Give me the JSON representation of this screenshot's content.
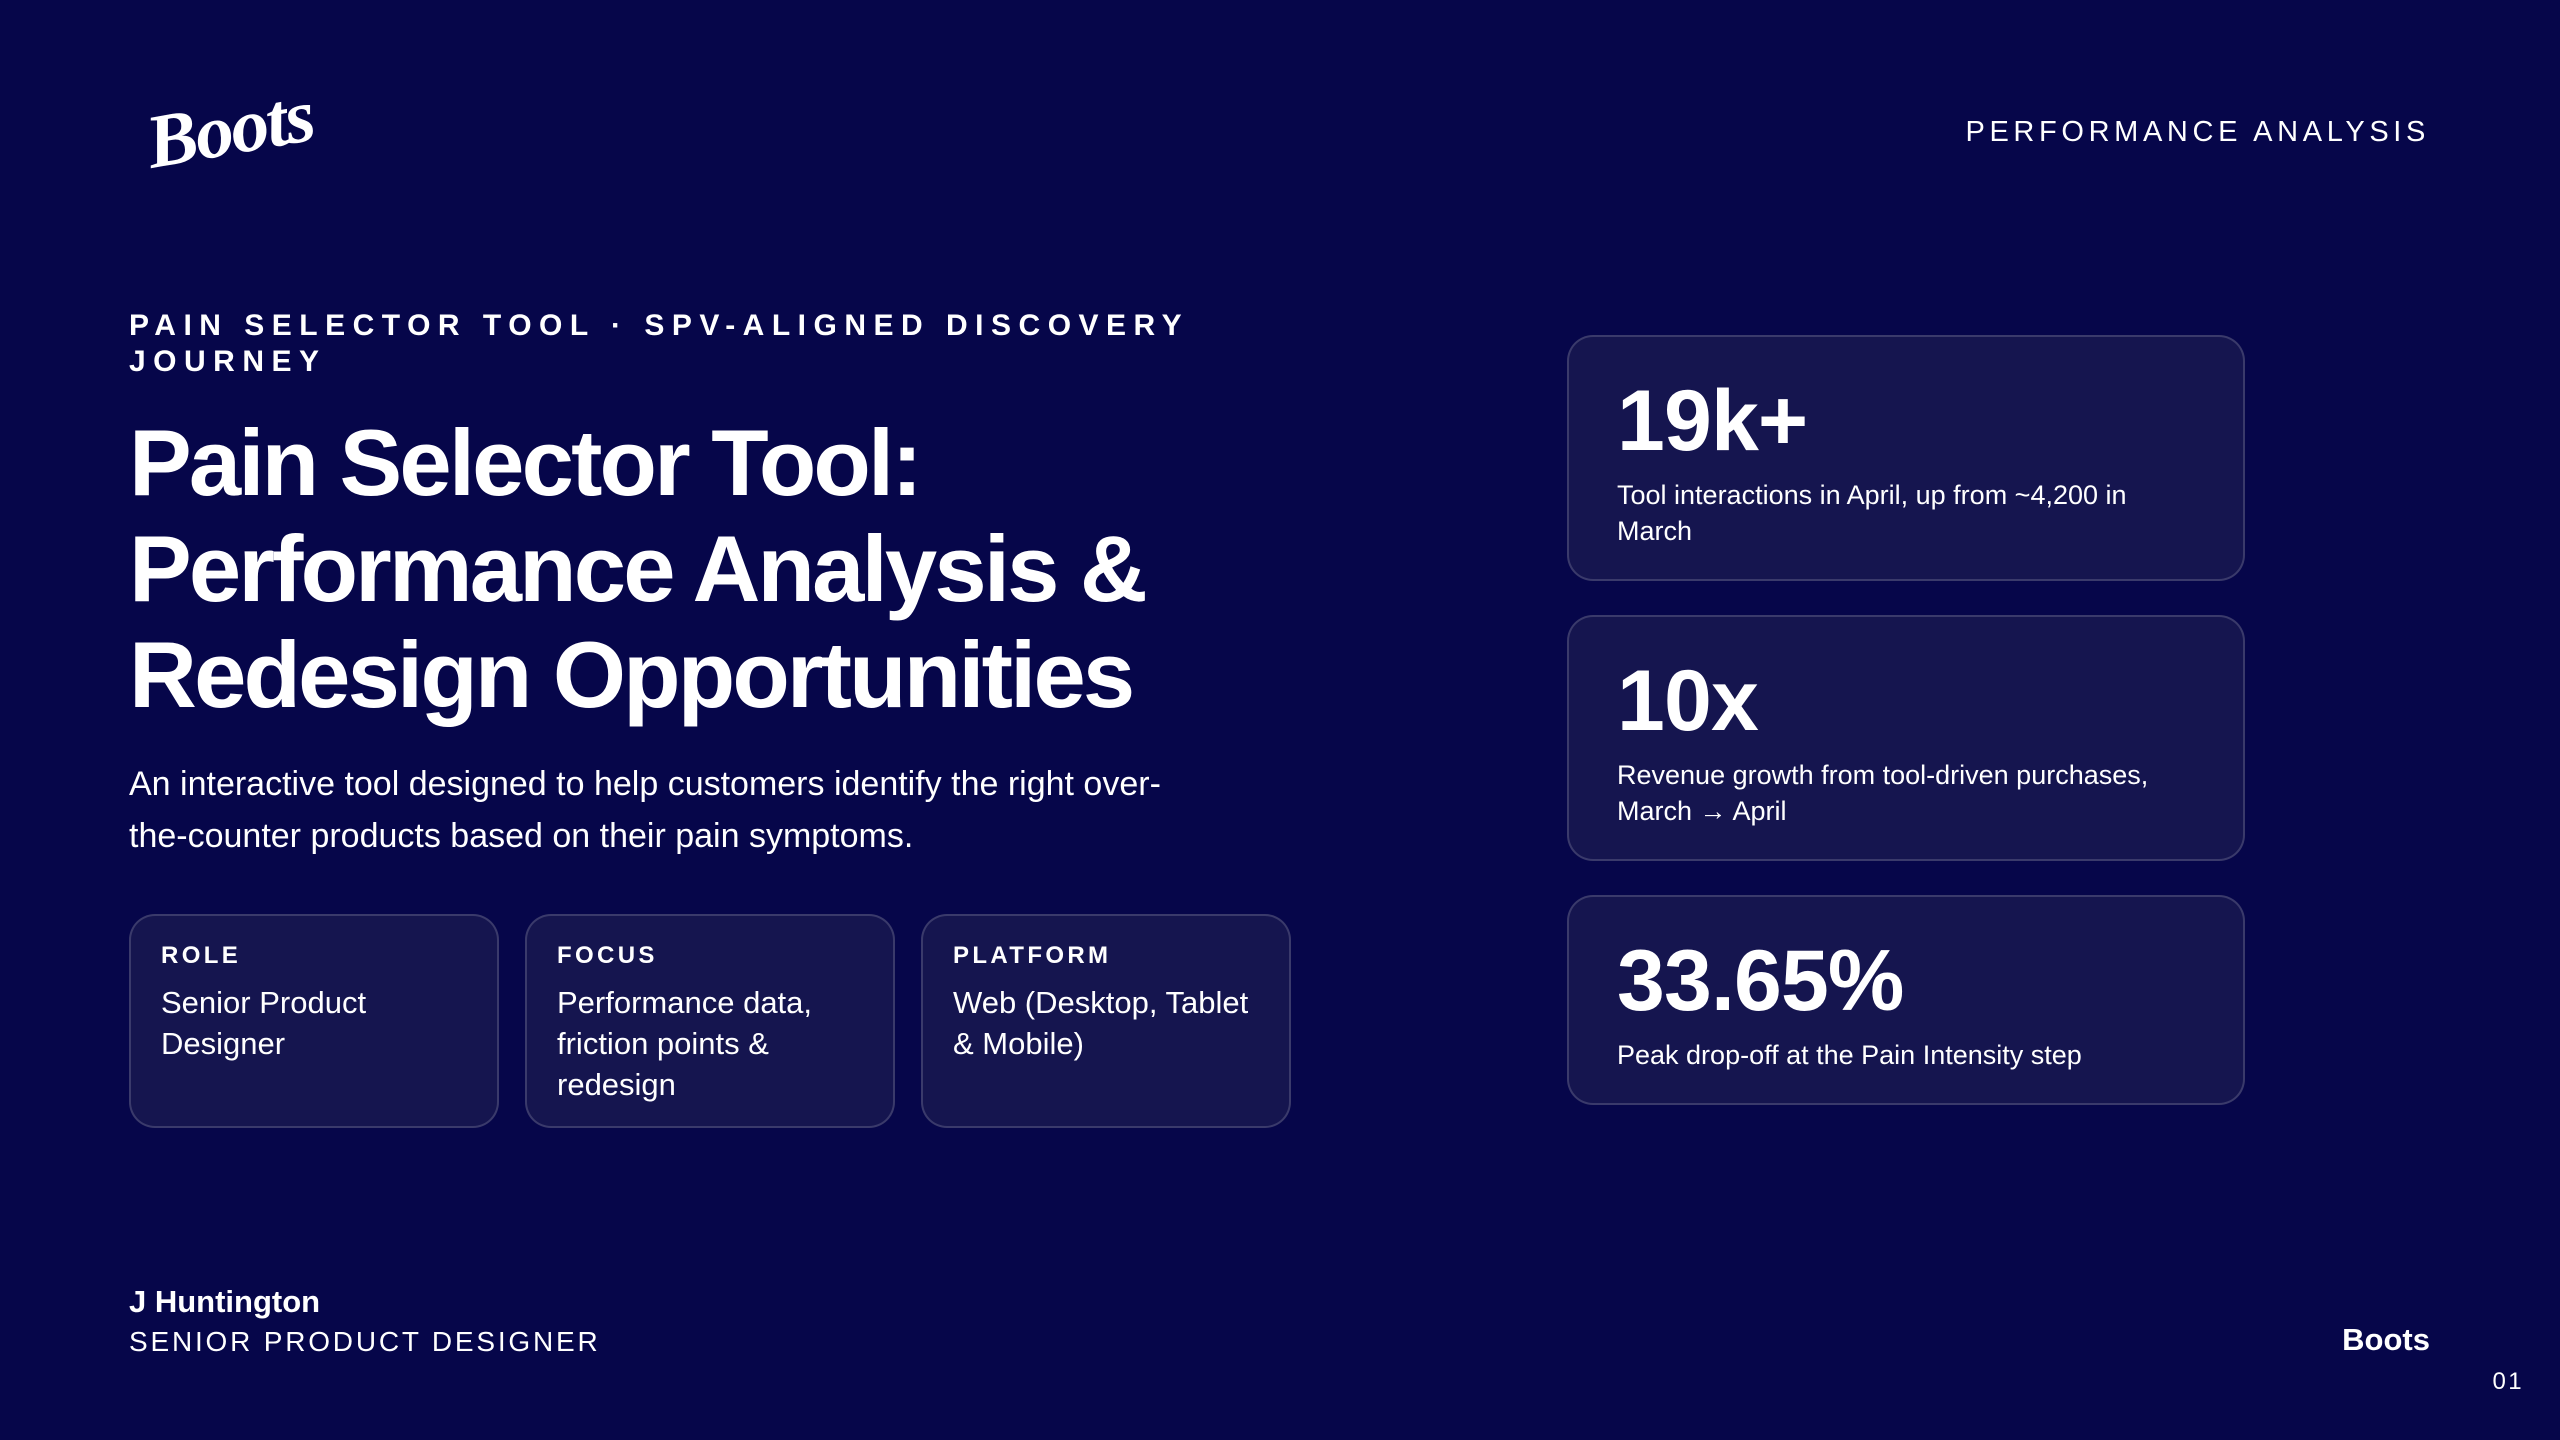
{
  "header": {
    "logo": "Boots",
    "section": "PERFORMANCE ANALYSIS"
  },
  "intro": {
    "eyebrow": "PAIN SELECTOR TOOL · SPV-ALIGNED DISCOVERY JOURNEY",
    "title_lines": [
      "Pain Selector Tool:",
      "Performance Analysis &",
      "Redesign Opportunities"
    ],
    "description": "An interactive tool designed to help customers identify the right over-the-counter products based on their pain symptoms."
  },
  "info_cards": [
    {
      "label": "ROLE",
      "value": "Senior Product Designer"
    },
    {
      "label": "FOCUS",
      "value": "Performance data, friction points & redesign"
    },
    {
      "label": "PLATFORM",
      "value": "Web (Desktop, Tablet & Mobile)"
    }
  ],
  "stats": [
    {
      "figure": "19k+",
      "text": "Tool interactions in April, up from ~4,200 in March"
    },
    {
      "figure": "10x",
      "text": "Revenue growth from tool-driven purchases, March → April"
    },
    {
      "figure": "33.65%",
      "text": "Peak drop-off at the Pain Intensity step"
    }
  ],
  "footer": {
    "name": "J Huntington",
    "role": "SENIOR PRODUCT DESIGNER",
    "brand": "Boots",
    "page": "01"
  }
}
